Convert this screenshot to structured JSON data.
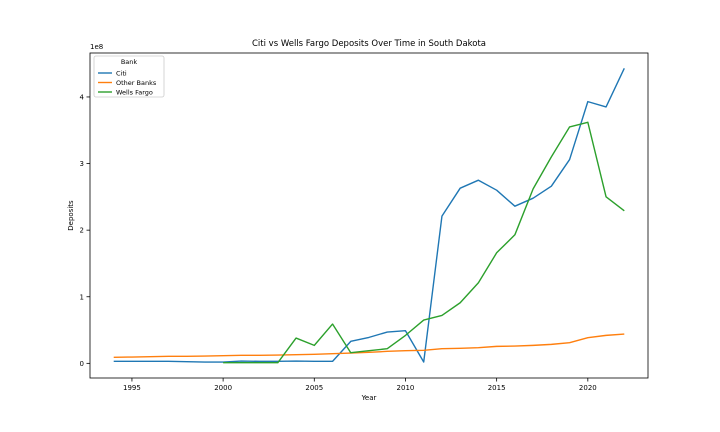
{
  "chart_data": {
    "type": "line",
    "title": "Citi vs Wells Fargo Deposits Over Time in South Dakota",
    "xlabel": "Year",
    "ylabel": "Deposits",
    "y_offset_text": "1e8",
    "xlim": [
      1992.7,
      2023.3
    ],
    "ylim": [
      -0.22,
      4.66
    ],
    "x_ticks": [
      1995,
      2000,
      2005,
      2010,
      2015,
      2020
    ],
    "y_ticks": [
      0,
      1,
      2,
      3,
      4
    ],
    "grid": false,
    "legend": {
      "title": "Bank",
      "position": "top-left"
    },
    "series": [
      {
        "name": "Citi",
        "color": "#1f77b4",
        "x": [
          1994,
          1995,
          1996,
          1997,
          1998,
          1999,
          2000,
          2001,
          2002,
          2003,
          2004,
          2005,
          2006,
          2007,
          2008,
          2009,
          2010,
          2011,
          2012,
          2013,
          2014,
          2015,
          2016,
          2017,
          2018,
          2019,
          2020,
          2021,
          2022
        ],
        "values": [
          0.03,
          0.03,
          0.03,
          0.03,
          0.025,
          0.02,
          0.02,
          0.035,
          0.03,
          0.03,
          0.035,
          0.03,
          0.03,
          0.33,
          0.39,
          0.47,
          0.49,
          0.02,
          2.21,
          2.63,
          2.75,
          2.6,
          2.36,
          2.48,
          2.66,
          3.06,
          3.93,
          3.85,
          4.43
        ]
      },
      {
        "name": "Other Banks",
        "color": "#ff7f0e",
        "x": [
          1994,
          1995,
          1996,
          1997,
          1998,
          1999,
          2000,
          2001,
          2002,
          2003,
          2004,
          2005,
          2006,
          2007,
          2008,
          2009,
          2010,
          2011,
          2012,
          2013,
          2014,
          2015,
          2016,
          2017,
          2018,
          2019,
          2020,
          2021,
          2022
        ],
        "values": [
          0.09,
          0.095,
          0.1,
          0.105,
          0.105,
          0.11,
          0.115,
          0.12,
          0.12,
          0.125,
          0.13,
          0.135,
          0.145,
          0.155,
          0.165,
          0.18,
          0.19,
          0.195,
          0.22,
          0.225,
          0.235,
          0.255,
          0.26,
          0.27,
          0.285,
          0.31,
          0.385,
          0.42,
          0.44
        ]
      },
      {
        "name": "Wells Fargo",
        "color": "#2ca02c",
        "x": [
          2000,
          2001,
          2002,
          2003,
          2004,
          2005,
          2006,
          2007,
          2008,
          2009,
          2010,
          2011,
          2012,
          2013,
          2014,
          2015,
          2016,
          2017,
          2018,
          2019,
          2020,
          2021,
          2022
        ],
        "values": [
          0.01,
          0.01,
          0.01,
          0.01,
          0.38,
          0.27,
          0.59,
          0.16,
          0.19,
          0.22,
          0.42,
          0.65,
          0.72,
          0.91,
          1.21,
          1.66,
          1.93,
          2.62,
          3.1,
          3.55,
          3.62,
          2.5,
          2.29
        ]
      }
    ]
  }
}
